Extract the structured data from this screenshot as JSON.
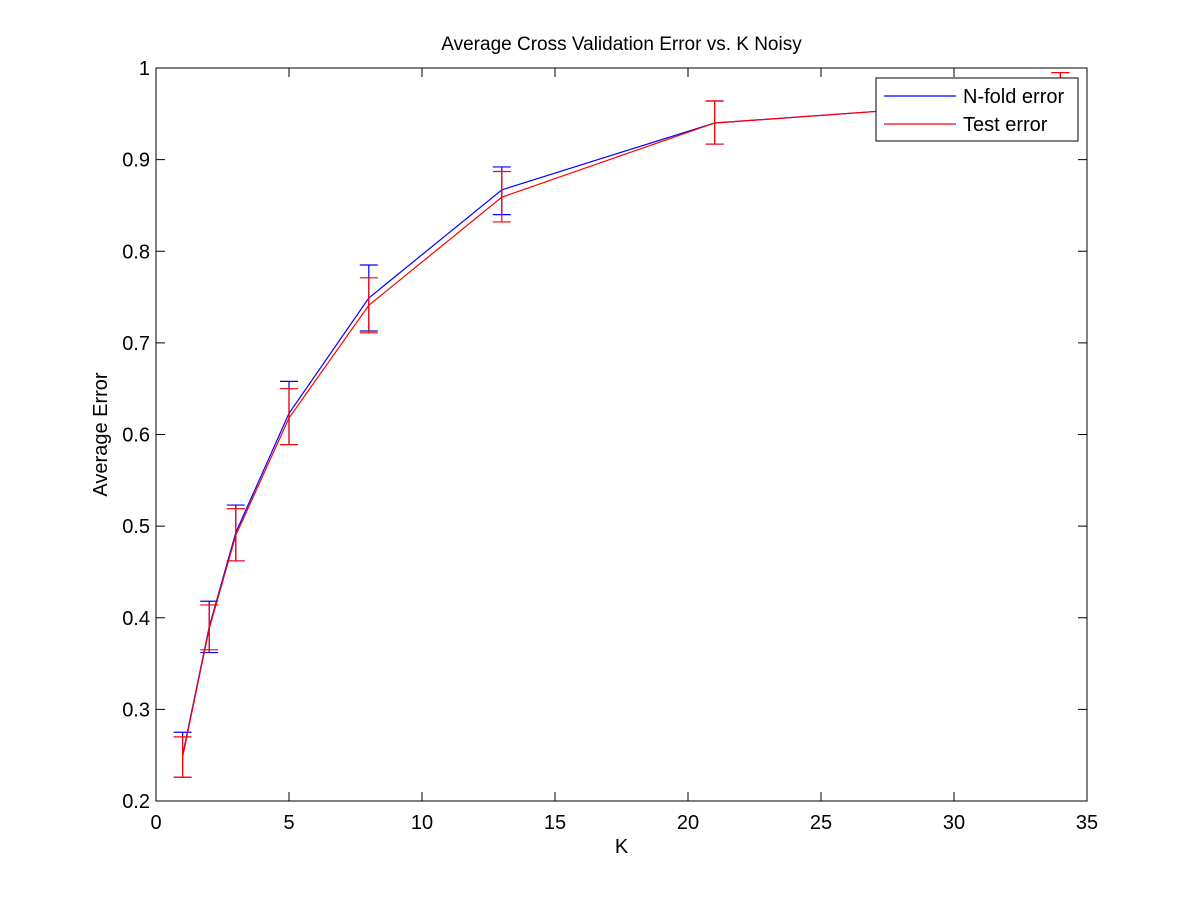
{
  "chart_data": {
    "type": "line",
    "title": "Average Cross Validation Error vs. K Noisy",
    "xlabel": "K",
    "ylabel": "Average Error",
    "xlim": [
      0,
      35
    ],
    "ylim": [
      0.2,
      1
    ],
    "xticks": [
      0,
      5,
      10,
      15,
      20,
      25,
      30,
      35
    ],
    "yticks": [
      0.2,
      0.3,
      0.4,
      0.5,
      0.6,
      0.7,
      0.8,
      0.9,
      1
    ],
    "xtick_labels": [
      "0",
      "5",
      "10",
      "15",
      "20",
      "25",
      "30",
      "35"
    ],
    "ytick_labels": [
      "0.2",
      "0.3",
      "0.4",
      "0.5",
      "0.6",
      "0.7",
      "0.8",
      "0.9",
      "1"
    ],
    "grid": false,
    "legend_position": "top-right",
    "x": [
      1,
      2,
      3,
      5,
      8,
      13,
      21,
      34
    ],
    "series": [
      {
        "name": "N-fold error",
        "color": "#0000ff",
        "values": [
          0.25,
          0.39,
          0.493,
          0.623,
          0.749,
          0.867,
          0.94,
          0.967
        ],
        "error_low": [
          0.226,
          0.362,
          0.462,
          0.589,
          0.713,
          0.84,
          0.917,
          0.94
        ],
        "error_high": [
          0.275,
          0.418,
          0.523,
          0.658,
          0.785,
          0.892,
          0.964,
          0.995
        ]
      },
      {
        "name": "Test error",
        "color": "#ff0000",
        "values": [
          0.248,
          0.388,
          0.49,
          0.618,
          0.741,
          0.859,
          0.94,
          0.967
        ],
        "error_low": [
          0.226,
          0.365,
          0.462,
          0.589,
          0.711,
          0.832,
          0.917,
          0.94
        ],
        "error_high": [
          0.27,
          0.414,
          0.519,
          0.65,
          0.771,
          0.887,
          0.964,
          0.995
        ]
      }
    ]
  }
}
